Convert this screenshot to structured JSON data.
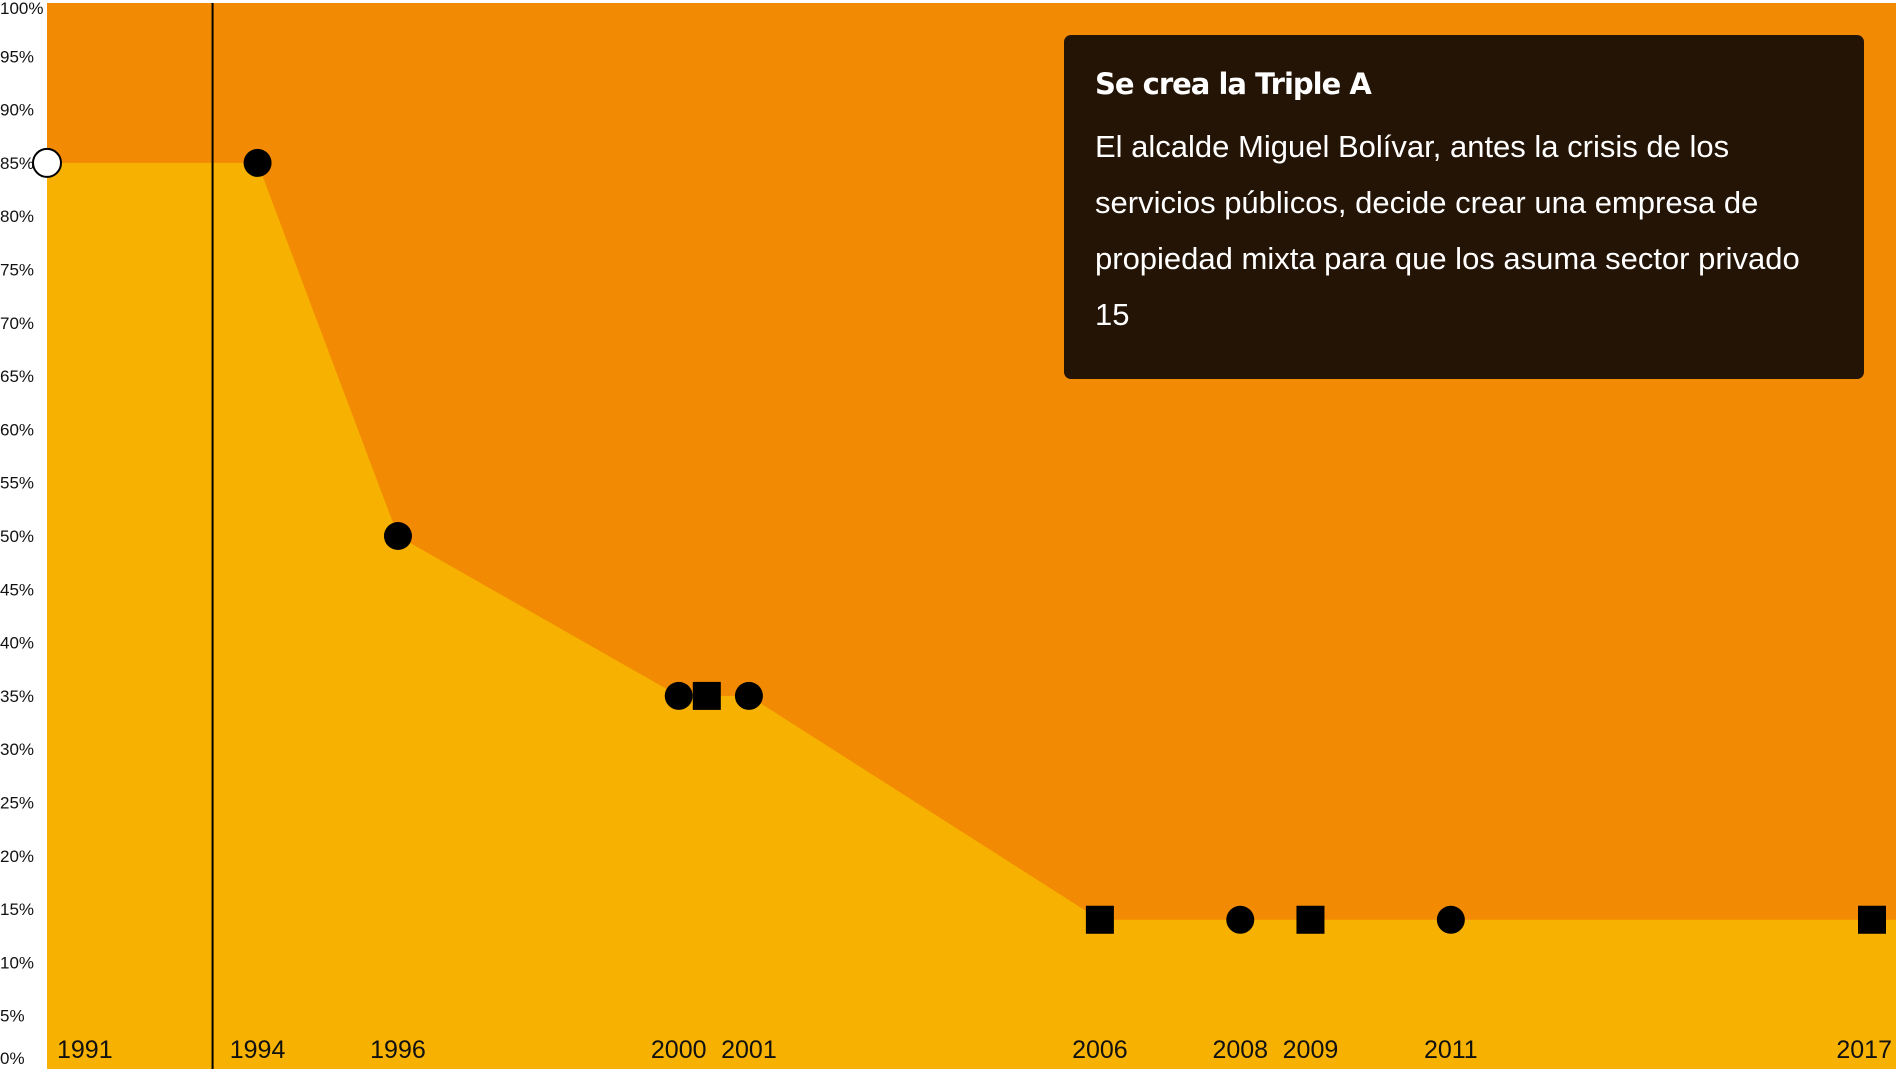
{
  "chart_data": {
    "type": "area",
    "x": [
      1991,
      1994,
      1996,
      2000,
      2000.4,
      2001,
      2006,
      2008,
      2009,
      2011,
      2017
    ],
    "series": [
      {
        "values": [
          85,
          85,
          50,
          35,
          35,
          35,
          14,
          14,
          14,
          14,
          14
        ],
        "markers": [
          "open-circle",
          "circle",
          "circle",
          "circle",
          "square",
          "circle",
          "square",
          "circle",
          "square",
          "circle",
          "square"
        ]
      }
    ],
    "x_tick_labels": [
      "1991",
      "1994",
      "1996",
      "2000",
      "2001",
      "2006",
      "2008",
      "2009",
      "2011",
      "2017"
    ],
    "x_tick_values": [
      1991,
      1994,
      1996,
      2000,
      2001,
      2006,
      2008,
      2009,
      2011,
      2017
    ],
    "y_tick_labels": [
      "0%",
      "5%",
      "10%",
      "15%",
      "20%",
      "25%",
      "30%",
      "35%",
      "40%",
      "45%",
      "50%",
      "55%",
      "60%",
      "65%",
      "70%",
      "75%",
      "80%",
      "85%",
      "90%",
      "95%",
      "100%"
    ],
    "ylim": [
      0,
      100
    ],
    "xlim": [
      1991,
      2017
    ],
    "highlight_x": 1994,
    "grid": false,
    "colors": {
      "upper_area": "#f28a03",
      "lower_area": "#f7b100",
      "markers": "#000000",
      "open_marker": "#ffffff"
    }
  },
  "tooltip": {
    "title": "Se crea la Triple A",
    "body": "El alcalde Miguel Bolívar, antes la crisis de los servicios públicos, decide crear una empresa de propiedad mixta para que los asuma sector privado 15"
  }
}
